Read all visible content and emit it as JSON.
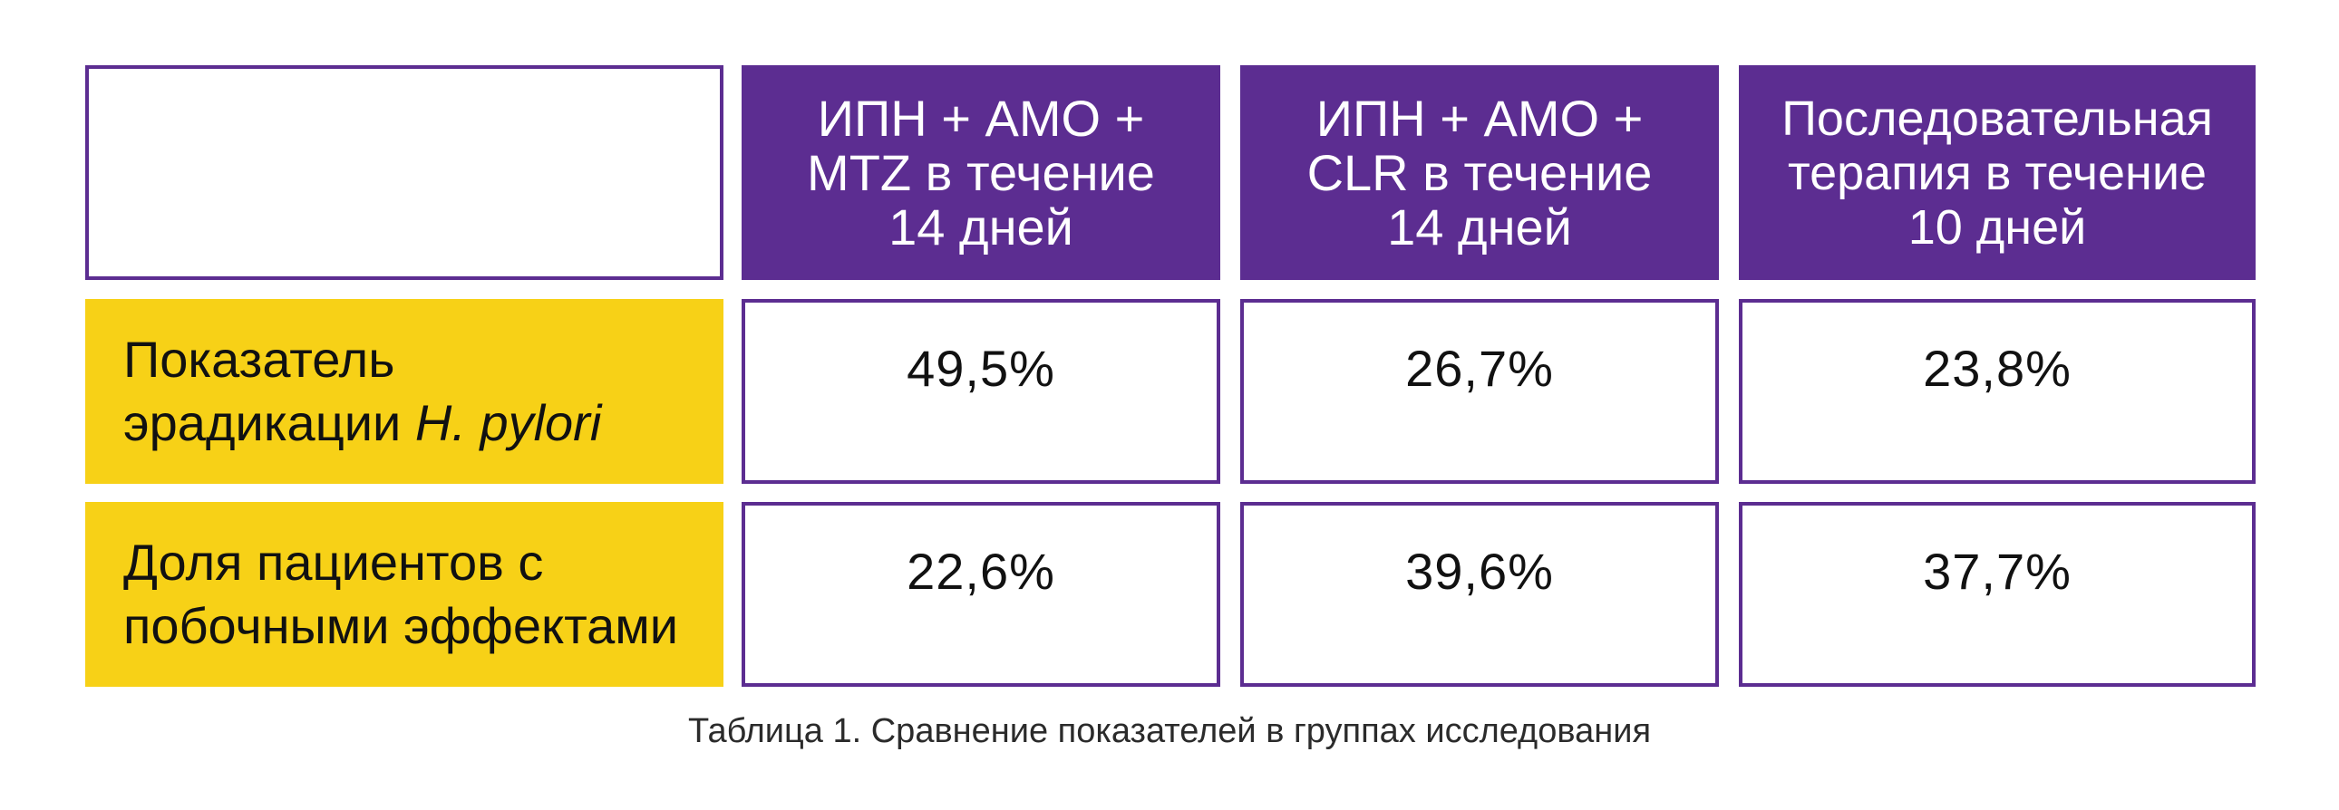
{
  "table": {
    "columns": [
      {
        "label": "ИПН + АМО +\nMTZ в течение\n14 дней"
      },
      {
        "label": "ИПН + АМО +\nCLR в течение\n14 дней"
      },
      {
        "label": "Последовательная\nтерапия в течение\n10 дней"
      }
    ],
    "rows": [
      {
        "label_line1": "Показатель",
        "label_line2": "эрадикации ",
        "label_italic": "H. pylori",
        "values": [
          "49,5%",
          "26,7%",
          "23,8%"
        ]
      },
      {
        "label_line1": "Доля пациентов с",
        "label_line2": "побочными эффектами",
        "label_italic": "",
        "values": [
          "22,6%",
          "39,6%",
          "37,7%"
        ]
      }
    ]
  },
  "caption": "Таблица 1. Сравнение показателей в группах исследования",
  "colors": {
    "header_bg": "#5c2d91",
    "label_bg": "#f7d117",
    "border": "#5c2d91"
  }
}
